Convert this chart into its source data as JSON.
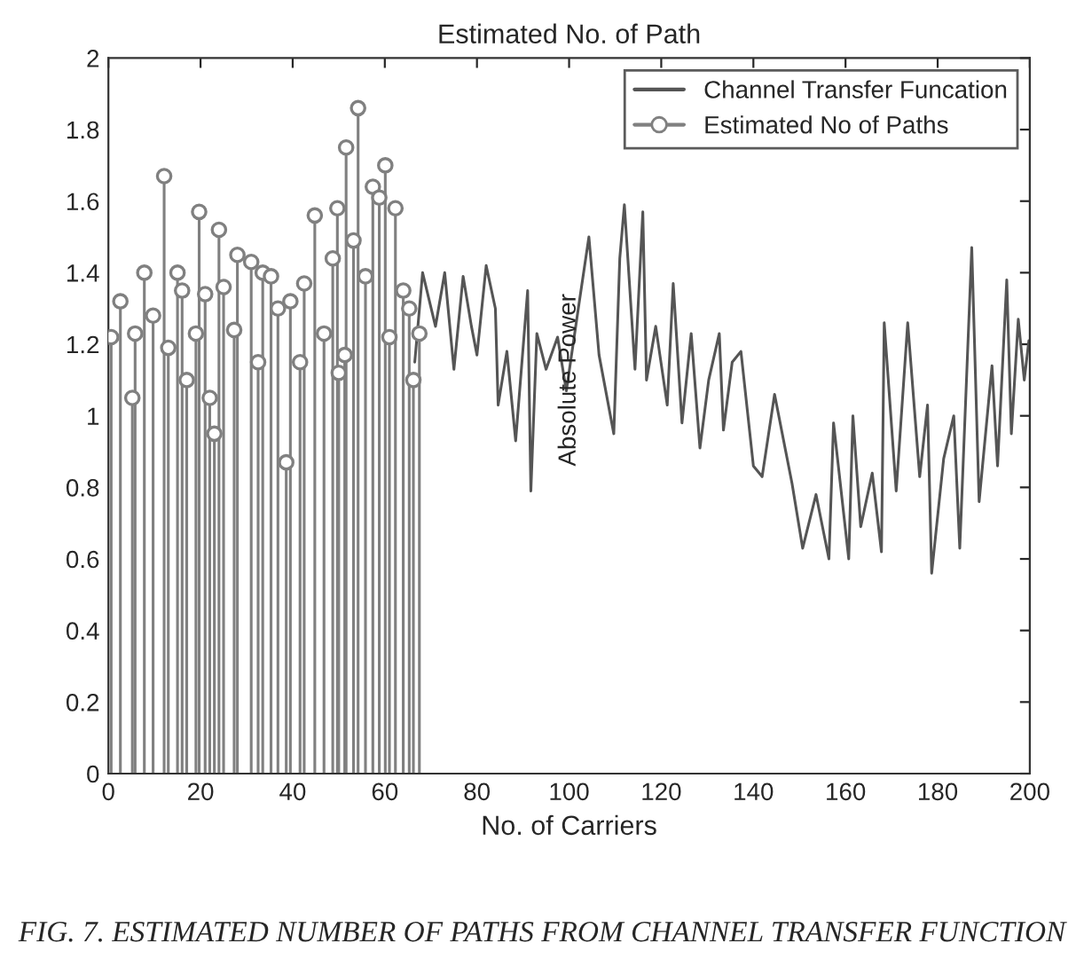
{
  "chart_data": {
    "type": "line",
    "title": "Estimated No. of Path",
    "xlabel": "No. of Carriers",
    "annotations": [
      "Absolute Power",
      "FIG. 7. ESTIMATED NUMBER OF PATHS FROM CHANNEL TRANSFER FUNCTION"
    ],
    "xlim": [
      0,
      200
    ],
    "xticks": [
      0,
      20,
      40,
      60,
      80,
      100,
      120,
      140,
      160,
      180,
      200
    ],
    "ylim": [
      0,
      2
    ],
    "yticks": [
      0,
      0.2,
      0.4,
      0.6,
      0.8,
      1,
      1.2,
      1.4,
      1.6,
      1.8,
      2
    ],
    "legend": "top right",
    "grid": false,
    "series": [
      {
        "name": "Channel Transfer Funcation",
        "type": "line",
        "color": "#555555",
        "line_style": "solid",
        "marker": "none",
        "x": [
          66.5,
          68.2,
          71,
          73,
          75,
          77,
          78.8,
          80,
          82,
          84,
          84.6,
          86.5,
          88.4,
          91,
          91.7,
          93,
          95,
          97.5,
          99.4,
          102,
          104.3,
          106.5,
          109.7,
          111,
          112,
          114.3,
          116,
          116.8,
          118.8,
          121.3,
          122.6,
          124.5,
          126.5,
          128.4,
          130.3,
          132.6,
          133.5,
          135.4,
          137.3,
          140,
          141.9,
          144.6,
          148.4,
          150.7,
          153.6,
          156.4,
          157.4,
          160.7,
          161.6,
          163.3,
          165.8,
          167.8,
          168.4,
          171,
          173.5,
          176.1,
          177.8,
          178.7,
          181.3,
          183.5,
          184.8,
          187.4,
          189,
          191.8,
          193,
          195,
          196,
          197.5,
          198.8,
          199.8
        ],
        "values": [
          1.15,
          1.4,
          1.25,
          1.4,
          1.13,
          1.39,
          1.25,
          1.17,
          1.42,
          1.3,
          1.03,
          1.18,
          0.93,
          1.35,
          0.79,
          1.23,
          1.13,
          1.22,
          1.07,
          1.3,
          1.5,
          1.17,
          0.95,
          1.44,
          1.59,
          1.13,
          1.57,
          1.1,
          1.25,
          1.03,
          1.37,
          0.98,
          1.23,
          0.91,
          1.1,
          1.23,
          0.96,
          1.15,
          1.18,
          0.86,
          0.83,
          1.06,
          0.81,
          0.63,
          0.78,
          0.6,
          0.98,
          0.6,
          1.0,
          0.69,
          0.84,
          0.62,
          1.26,
          0.79,
          1.26,
          0.83,
          1.03,
          0.56,
          0.88,
          1.0,
          0.63,
          1.47,
          0.76,
          1.14,
          0.86,
          1.38,
          0.95,
          1.27,
          1.1,
          1.21
        ]
      },
      {
        "name": "Estimated No of Paths",
        "type": "lollipop",
        "color": "#808080",
        "marker": "circle",
        "x": [
          0.6,
          2.6,
          5.2,
          5.8,
          7.8,
          9.7,
          12.1,
          13,
          15,
          16,
          17,
          19,
          19.7,
          21,
          22,
          23,
          24,
          25,
          27.3,
          28,
          31,
          32.5,
          33.5,
          35.3,
          36.8,
          38.6,
          39.5,
          41.6,
          42.5,
          44.8,
          46.8,
          48.7,
          49.7,
          50,
          51.3,
          51.6,
          53.2,
          54.2,
          55.8,
          57.4,
          58.8,
          60.1,
          61,
          62.3,
          64,
          65.3,
          66.2,
          67.5
        ],
        "values": [
          1.22,
          1.32,
          1.05,
          1.23,
          1.4,
          1.28,
          1.67,
          1.19,
          1.4,
          1.35,
          1.1,
          1.23,
          1.57,
          1.34,
          1.05,
          0.95,
          1.52,
          1.36,
          1.24,
          1.45,
          1.43,
          1.15,
          1.4,
          1.39,
          1.3,
          0.87,
          1.32,
          1.15,
          1.37,
          1.56,
          1.23,
          1.44,
          1.58,
          1.12,
          1.17,
          1.75,
          1.49,
          1.86,
          1.39,
          1.64,
          1.61,
          1.7,
          1.22,
          1.58,
          1.35,
          1.3,
          1.1,
          1.23
        ]
      }
    ]
  }
}
